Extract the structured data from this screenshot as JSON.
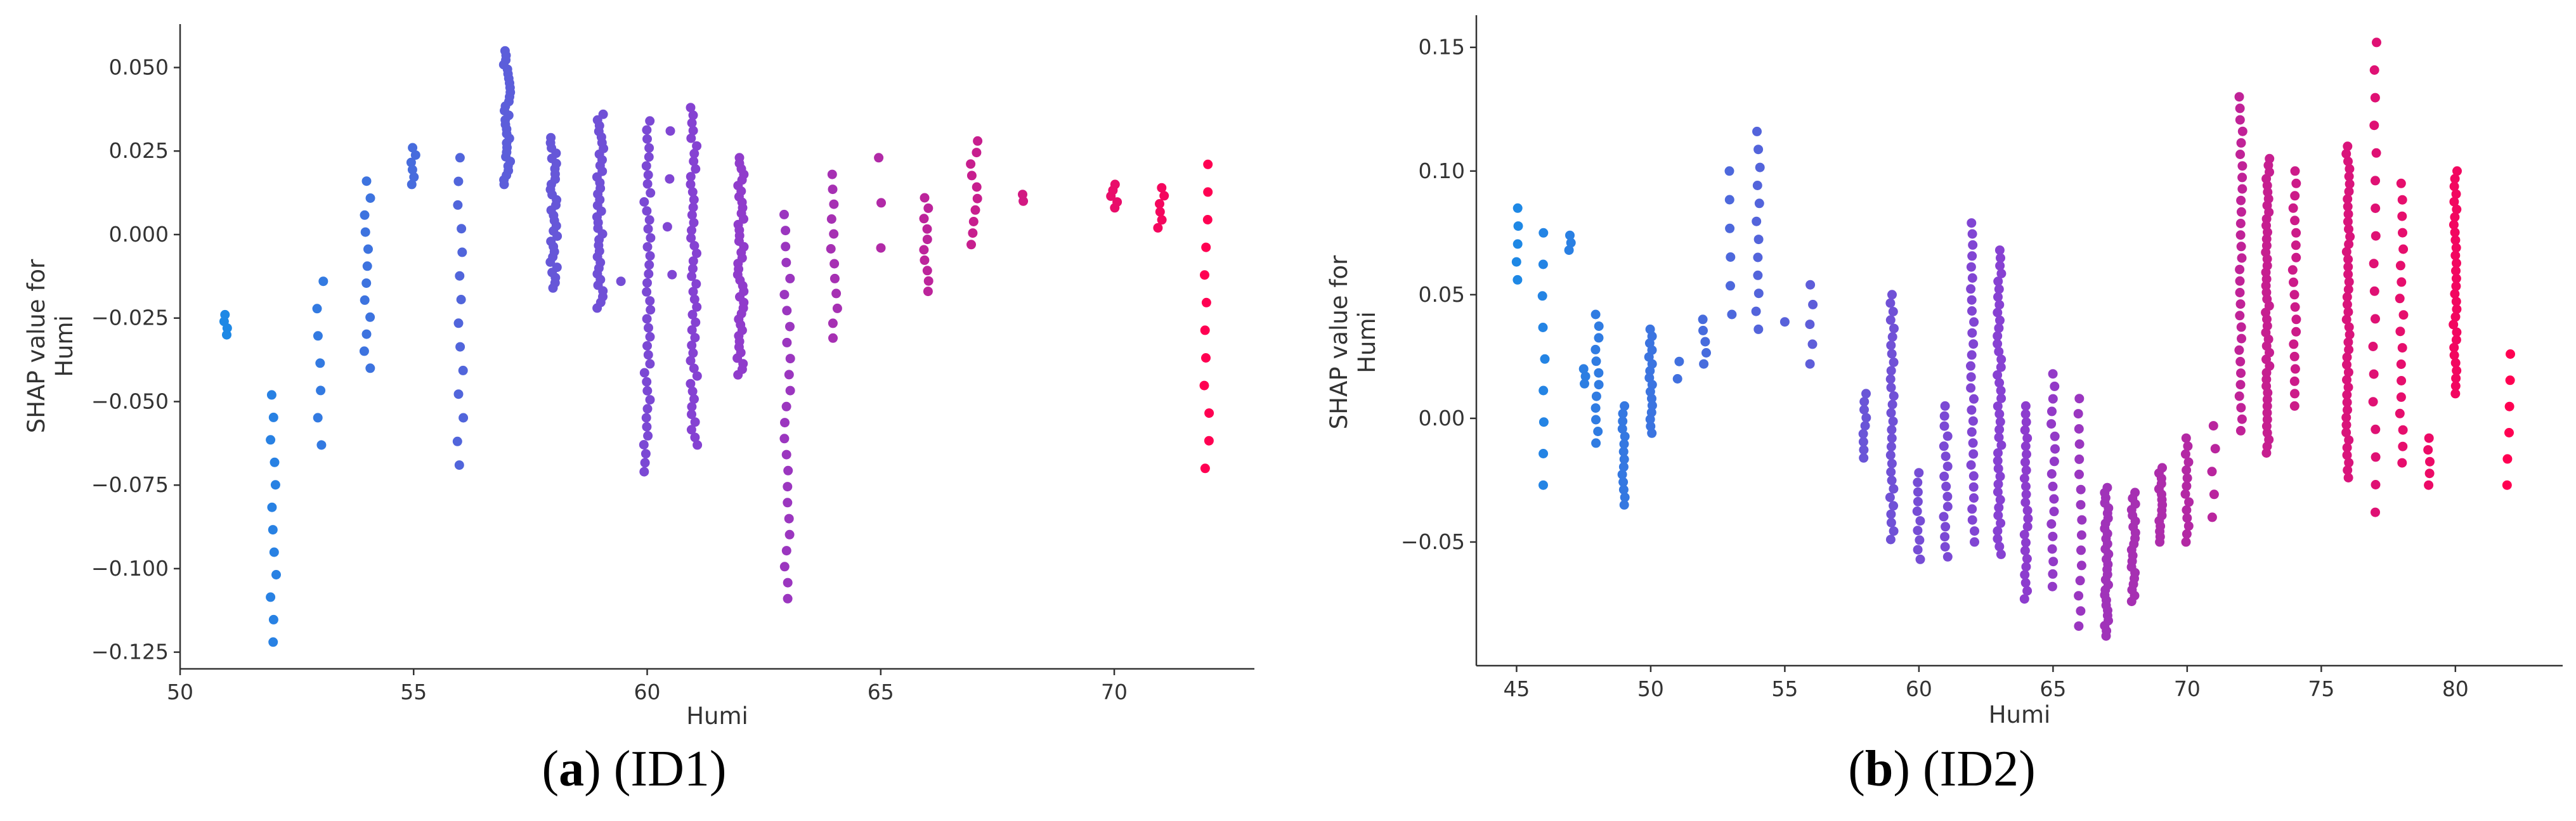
{
  "colors": {
    "low": "#1E88E5",
    "mid": "#8A3FD1",
    "high": "#FF0052"
  },
  "captions": [
    {
      "letter": "a",
      "text": " (ID1)"
    },
    {
      "letter": "b",
      "text": " (ID2)"
    }
  ],
  "chart_data": [
    {
      "type": "scatter",
      "title": "",
      "xlabel": "Humi",
      "ylabel": "SHAP value for\nHumi",
      "xlim": [
        50,
        73
      ],
      "ylim": [
        -0.13,
        0.063
      ],
      "xticks": [
        50,
        55,
        60,
        65,
        70
      ],
      "yticks": [
        -0.125,
        -0.1,
        -0.075,
        -0.05,
        -0.025,
        0.0,
        0.025,
        0.05
      ],
      "ytick_labels": [
        "−0.125",
        "−0.100",
        "−0.075",
        "−0.050",
        "−0.025",
        "0.000",
        "0.025",
        "0.050"
      ],
      "xtick_labels": [
        "50",
        "55",
        "60",
        "65",
        "70"
      ],
      "color_range": [
        51,
        72
      ],
      "groups": [
        {
          "x": 51,
          "min": -0.03,
          "max": -0.024,
          "n": 4
        },
        {
          "x": 52,
          "min": -0.122,
          "max": -0.048,
          "n": 12
        },
        {
          "x": 53,
          "min": -0.063,
          "max": -0.014,
          "n": 7
        },
        {
          "x": 54,
          "min": -0.04,
          "max": 0.016,
          "n": 12
        },
        {
          "x": 55,
          "min": 0.015,
          "max": 0.026,
          "n": 6
        },
        {
          "x": 56,
          "min": -0.069,
          "max": 0.023,
          "n": 14
        },
        {
          "x": 57,
          "min": 0.015,
          "max": 0.055,
          "n": 30
        },
        {
          "x": 58,
          "min": -0.016,
          "max": 0.029,
          "n": 30
        },
        {
          "x": 59,
          "min": -0.022,
          "max": 0.036,
          "n": 35
        },
        {
          "x": 59.5,
          "min": -0.015,
          "max": -0.013,
          "n": 1
        },
        {
          "x": 60,
          "min": -0.071,
          "max": 0.034,
          "n": 40
        },
        {
          "x": 60.5,
          "min": -0.012,
          "max": 0.031,
          "n": 4
        },
        {
          "x": 61,
          "min": -0.063,
          "max": 0.038,
          "n": 45
        },
        {
          "x": 62,
          "min": -0.042,
          "max": 0.023,
          "n": 40
        },
        {
          "x": 63,
          "min": -0.109,
          "max": 0.006,
          "n": 25
        },
        {
          "x": 64,
          "min": -0.031,
          "max": 0.018,
          "n": 12
        },
        {
          "x": 65,
          "min": -0.004,
          "max": 0.023,
          "n": 3
        },
        {
          "x": 66,
          "min": -0.017,
          "max": 0.011,
          "n": 10
        },
        {
          "x": 67,
          "min": -0.003,
          "max": 0.028,
          "n": 10
        },
        {
          "x": 68,
          "min": 0.01,
          "max": 0.012,
          "n": 2
        },
        {
          "x": 70,
          "min": 0.008,
          "max": 0.015,
          "n": 5
        },
        {
          "x": 71,
          "min": 0.002,
          "max": 0.014,
          "n": 6
        },
        {
          "x": 72,
          "min": -0.07,
          "max": 0.021,
          "n": 12
        }
      ]
    },
    {
      "type": "scatter",
      "title": "",
      "xlabel": "Humi",
      "ylabel": "SHAP value for\nHumi",
      "xlim": [
        43.5,
        84
      ],
      "ylim": [
        -0.1,
        0.163
      ],
      "xticks": [
        45,
        50,
        55,
        60,
        65,
        70,
        75,
        80
      ],
      "xtick_labels": [
        "45",
        "50",
        "55",
        "60",
        "65",
        "70",
        "75",
        "80"
      ],
      "yticks": [
        -0.05,
        0.0,
        0.05,
        0.1,
        0.15
      ],
      "ytick_labels": [
        "−0.05",
        "0.00",
        "0.05",
        "0.10",
        "0.15"
      ],
      "color_range": [
        45,
        82
      ],
      "groups": [
        {
          "x": 45,
          "min": 0.056,
          "max": 0.085,
          "n": 5
        },
        {
          "x": 46,
          "min": -0.027,
          "max": 0.075,
          "n": 9
        },
        {
          "x": 47,
          "min": 0.068,
          "max": 0.074,
          "n": 3
        },
        {
          "x": 47.5,
          "min": 0.014,
          "max": 0.02,
          "n": 3
        },
        {
          "x": 48,
          "min": -0.01,
          "max": 0.042,
          "n": 12
        },
        {
          "x": 49,
          "min": -0.035,
          "max": 0.005,
          "n": 14
        },
        {
          "x": 50,
          "min": -0.006,
          "max": 0.036,
          "n": 16
        },
        {
          "x": 51,
          "min": 0.016,
          "max": 0.023,
          "n": 2
        },
        {
          "x": 52,
          "min": 0.022,
          "max": 0.04,
          "n": 5
        },
        {
          "x": 53,
          "min": 0.042,
          "max": 0.1,
          "n": 6
        },
        {
          "x": 54,
          "min": 0.036,
          "max": 0.116,
          "n": 12
        },
        {
          "x": 55,
          "min": 0.038,
          "max": 0.04,
          "n": 1
        },
        {
          "x": 56,
          "min": 0.022,
          "max": 0.054,
          "n": 5
        },
        {
          "x": 58,
          "min": -0.016,
          "max": 0.01,
          "n": 9
        },
        {
          "x": 59,
          "min": -0.049,
          "max": 0.05,
          "n": 30
        },
        {
          "x": 60,
          "min": -0.057,
          "max": -0.022,
          "n": 10
        },
        {
          "x": 61,
          "min": -0.056,
          "max": 0.005,
          "n": 16
        },
        {
          "x": 62,
          "min": -0.05,
          "max": 0.079,
          "n": 30
        },
        {
          "x": 63,
          "min": -0.055,
          "max": 0.068,
          "n": 40
        },
        {
          "x": 64,
          "min": -0.073,
          "max": 0.005,
          "n": 25
        },
        {
          "x": 65,
          "min": -0.068,
          "max": 0.018,
          "n": 18
        },
        {
          "x": 66,
          "min": -0.084,
          "max": 0.008,
          "n": 16
        },
        {
          "x": 67,
          "min": -0.088,
          "max": -0.028,
          "n": 30
        },
        {
          "x": 68,
          "min": -0.074,
          "max": -0.03,
          "n": 20
        },
        {
          "x": 69,
          "min": -0.05,
          "max": -0.02,
          "n": 15
        },
        {
          "x": 70,
          "min": -0.05,
          "max": -0.008,
          "n": 14
        },
        {
          "x": 71,
          "min": -0.04,
          "max": -0.003,
          "n": 5
        },
        {
          "x": 72,
          "min": -0.005,
          "max": 0.13,
          "n": 30
        },
        {
          "x": 73,
          "min": -0.014,
          "max": 0.105,
          "n": 45
        },
        {
          "x": 74,
          "min": 0.005,
          "max": 0.1,
          "n": 20
        },
        {
          "x": 76,
          "min": -0.024,
          "max": 0.11,
          "n": 45
        },
        {
          "x": 77,
          "min": -0.038,
          "max": 0.152,
          "n": 18
        },
        {
          "x": 78,
          "min": -0.018,
          "max": 0.095,
          "n": 18
        },
        {
          "x": 79,
          "min": -0.027,
          "max": -0.008,
          "n": 5
        },
        {
          "x": 80,
          "min": 0.01,
          "max": 0.1,
          "n": 30
        },
        {
          "x": 82,
          "min": -0.027,
          "max": 0.026,
          "n": 6
        }
      ]
    }
  ]
}
